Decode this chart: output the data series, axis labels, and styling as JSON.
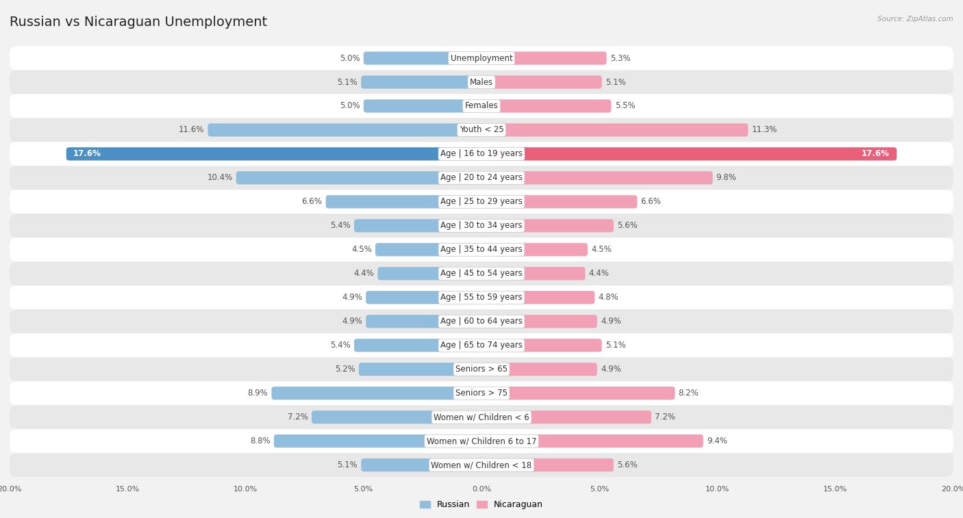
{
  "title": "Russian vs Nicaraguan Unemployment",
  "source": "Source: ZipAtlas.com",
  "categories": [
    "Unemployment",
    "Males",
    "Females",
    "Youth < 25",
    "Age | 16 to 19 years",
    "Age | 20 to 24 years",
    "Age | 25 to 29 years",
    "Age | 30 to 34 years",
    "Age | 35 to 44 years",
    "Age | 45 to 54 years",
    "Age | 55 to 59 years",
    "Age | 60 to 64 years",
    "Age | 65 to 74 years",
    "Seniors > 65",
    "Seniors > 75",
    "Women w/ Children < 6",
    "Women w/ Children 6 to 17",
    "Women w/ Children < 18"
  ],
  "russian": [
    5.0,
    5.1,
    5.0,
    11.6,
    17.6,
    10.4,
    6.6,
    5.4,
    4.5,
    4.4,
    4.9,
    4.9,
    5.4,
    5.2,
    8.9,
    7.2,
    8.8,
    5.1
  ],
  "nicaraguan": [
    5.3,
    5.1,
    5.5,
    11.3,
    17.6,
    9.8,
    6.6,
    5.6,
    4.5,
    4.4,
    4.8,
    4.9,
    5.1,
    4.9,
    8.2,
    7.2,
    9.4,
    5.6
  ],
  "russian_color": "#92bedd",
  "nicaraguan_color": "#f2a0b5",
  "highlight_russian_color": "#4a90c4",
  "highlight_nicaraguan_color": "#e8607a",
  "xlim": 20.0,
  "bg_color": "#f2f2f2",
  "row_bg_white": "#ffffff",
  "row_bg_gray": "#e8e8e8",
  "title_fontsize": 14,
  "label_fontsize": 8.5,
  "value_fontsize": 8.5,
  "legend_fontsize": 9,
  "axis_label_fontsize": 8
}
